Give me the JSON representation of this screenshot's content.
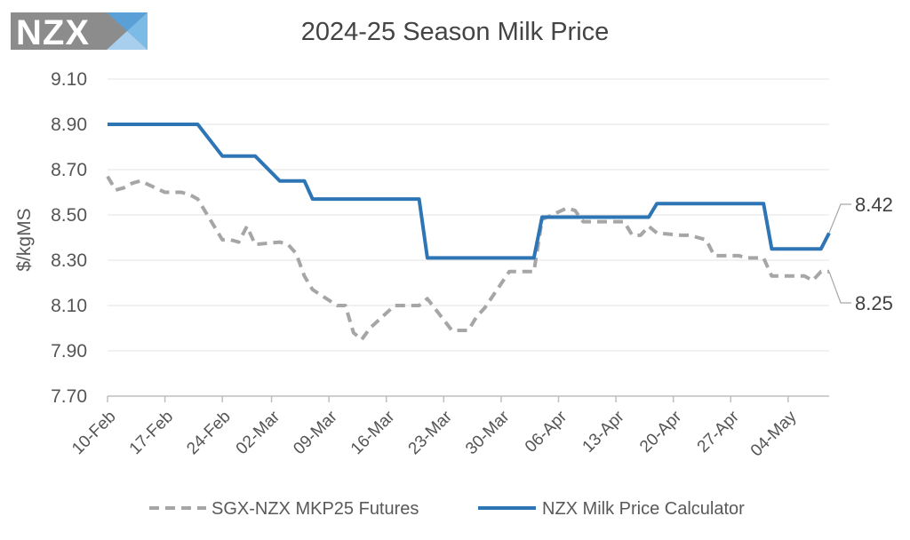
{
  "logo": {
    "text": "NZX"
  },
  "chart_data": {
    "type": "line",
    "title": "2024-25 Season Milk Price",
    "ylabel": "$/kgMS",
    "xlabel": "",
    "ylim": [
      7.7,
      9.1
    ],
    "y_ticks": [
      "7.70",
      "7.90",
      "8.10",
      "8.30",
      "8.50",
      "8.70",
      "8.90",
      "9.10"
    ],
    "x_ticks": [
      "10-Feb",
      "17-Feb",
      "24-Feb",
      "02-Mar",
      "09-Mar",
      "16-Mar",
      "23-Mar",
      "30-Mar",
      "06-Apr",
      "13-Apr",
      "20-Apr",
      "27-Apr",
      "04-May"
    ],
    "x_start": "2025-02-10",
    "x_end": "2025-05-09",
    "grid": true,
    "legend_position": "bottom",
    "series": [
      {
        "name": "SGX-NZX MKP25 Futures",
        "style": "dashed",
        "color": "#a6a6a6",
        "end_label": "8.25",
        "points": [
          [
            "2025-02-10",
            8.67
          ],
          [
            "2025-02-11",
            8.61
          ],
          [
            "2025-02-12",
            8.62
          ],
          [
            "2025-02-13",
            8.64
          ],
          [
            "2025-02-14",
            8.65
          ],
          [
            "2025-02-17",
            8.6
          ],
          [
            "2025-02-18",
            8.6
          ],
          [
            "2025-02-19",
            8.6
          ],
          [
            "2025-02-20",
            8.59
          ],
          [
            "2025-02-21",
            8.57
          ],
          [
            "2025-02-24",
            8.39
          ],
          [
            "2025-02-25",
            8.39
          ],
          [
            "2025-02-26",
            8.38
          ],
          [
            "2025-02-27",
            8.45
          ],
          [
            "2025-02-28",
            8.37
          ],
          [
            "2025-03-03",
            8.38
          ],
          [
            "2025-03-04",
            8.37
          ],
          [
            "2025-03-05",
            8.33
          ],
          [
            "2025-03-06",
            8.23
          ],
          [
            "2025-03-07",
            8.17
          ],
          [
            "2025-03-10",
            8.1
          ],
          [
            "2025-03-11",
            8.1
          ],
          [
            "2025-03-12",
            7.98
          ],
          [
            "2025-03-13",
            7.95
          ],
          [
            "2025-03-14",
            8.0
          ],
          [
            "2025-03-17",
            8.1
          ],
          [
            "2025-03-18",
            8.1
          ],
          [
            "2025-03-19",
            8.1
          ],
          [
            "2025-03-20",
            8.1
          ],
          [
            "2025-03-21",
            8.13
          ],
          [
            "2025-03-24",
            7.99
          ],
          [
            "2025-03-25",
            7.99
          ],
          [
            "2025-03-26",
            7.99
          ],
          [
            "2025-03-27",
            8.05
          ],
          [
            "2025-03-28",
            8.09
          ],
          [
            "2025-03-31",
            8.25
          ],
          [
            "2025-04-01",
            8.25
          ],
          [
            "2025-04-02",
            8.25
          ],
          [
            "2025-04-03",
            8.25
          ],
          [
            "2025-04-04",
            8.48
          ],
          [
            "2025-04-07",
            8.53
          ],
          [
            "2025-04-08",
            8.52
          ],
          [
            "2025-04-09",
            8.47
          ],
          [
            "2025-04-10",
            8.47
          ],
          [
            "2025-04-11",
            8.47
          ],
          [
            "2025-04-14",
            8.47
          ],
          [
            "2025-04-15",
            8.41
          ],
          [
            "2025-04-16",
            8.41
          ],
          [
            "2025-04-17",
            8.45
          ],
          [
            "2025-04-18",
            8.42
          ],
          [
            "2025-04-21",
            8.41
          ],
          [
            "2025-04-22",
            8.41
          ],
          [
            "2025-04-23",
            8.4
          ],
          [
            "2025-04-24",
            8.39
          ],
          [
            "2025-04-25",
            8.32
          ],
          [
            "2025-04-28",
            8.32
          ],
          [
            "2025-04-29",
            8.31
          ],
          [
            "2025-04-30",
            8.31
          ],
          [
            "2025-05-01",
            8.31
          ],
          [
            "2025-05-02",
            8.23
          ],
          [
            "2025-05-05",
            8.23
          ],
          [
            "2025-05-06",
            8.23
          ],
          [
            "2025-05-07",
            8.21
          ],
          [
            "2025-05-08",
            8.25
          ],
          [
            "2025-05-09",
            8.25
          ]
        ]
      },
      {
        "name": "NZX Milk Price Calculator",
        "style": "solid",
        "color": "#2e75b6",
        "end_label": "8.42",
        "points": [
          [
            "2025-02-10",
            8.9
          ],
          [
            "2025-02-11",
            8.9
          ],
          [
            "2025-02-12",
            8.9
          ],
          [
            "2025-02-13",
            8.9
          ],
          [
            "2025-02-14",
            8.9
          ],
          [
            "2025-02-17",
            8.9
          ],
          [
            "2025-02-18",
            8.9
          ],
          [
            "2025-02-19",
            8.9
          ],
          [
            "2025-02-20",
            8.9
          ],
          [
            "2025-02-21",
            8.9
          ],
          [
            "2025-02-24",
            8.76
          ],
          [
            "2025-02-25",
            8.76
          ],
          [
            "2025-02-26",
            8.76
          ],
          [
            "2025-02-27",
            8.76
          ],
          [
            "2025-02-28",
            8.76
          ],
          [
            "2025-03-03",
            8.65
          ],
          [
            "2025-03-04",
            8.65
          ],
          [
            "2025-03-05",
            8.65
          ],
          [
            "2025-03-06",
            8.65
          ],
          [
            "2025-03-07",
            8.57
          ],
          [
            "2025-03-10",
            8.57
          ],
          [
            "2025-03-11",
            8.57
          ],
          [
            "2025-03-12",
            8.57
          ],
          [
            "2025-03-13",
            8.57
          ],
          [
            "2025-03-14",
            8.57
          ],
          [
            "2025-03-17",
            8.57
          ],
          [
            "2025-03-18",
            8.57
          ],
          [
            "2025-03-19",
            8.57
          ],
          [
            "2025-03-20",
            8.57
          ],
          [
            "2025-03-21",
            8.31
          ],
          [
            "2025-03-24",
            8.31
          ],
          [
            "2025-03-25",
            8.31
          ],
          [
            "2025-03-26",
            8.31
          ],
          [
            "2025-03-27",
            8.31
          ],
          [
            "2025-03-28",
            8.31
          ],
          [
            "2025-03-31",
            8.31
          ],
          [
            "2025-04-01",
            8.31
          ],
          [
            "2025-04-02",
            8.31
          ],
          [
            "2025-04-03",
            8.31
          ],
          [
            "2025-04-04",
            8.49
          ],
          [
            "2025-04-07",
            8.49
          ],
          [
            "2025-04-08",
            8.49
          ],
          [
            "2025-04-09",
            8.49
          ],
          [
            "2025-04-10",
            8.49
          ],
          [
            "2025-04-11",
            8.49
          ],
          [
            "2025-04-14",
            8.49
          ],
          [
            "2025-04-15",
            8.49
          ],
          [
            "2025-04-16",
            8.49
          ],
          [
            "2025-04-17",
            8.49
          ],
          [
            "2025-04-18",
            8.55
          ],
          [
            "2025-04-21",
            8.55
          ],
          [
            "2025-04-22",
            8.55
          ],
          [
            "2025-04-23",
            8.55
          ],
          [
            "2025-04-24",
            8.55
          ],
          [
            "2025-04-25",
            8.55
          ],
          [
            "2025-04-28",
            8.55
          ],
          [
            "2025-04-29",
            8.55
          ],
          [
            "2025-04-30",
            8.55
          ],
          [
            "2025-05-01",
            8.55
          ],
          [
            "2025-05-02",
            8.35
          ],
          [
            "2025-05-05",
            8.35
          ],
          [
            "2025-05-06",
            8.35
          ],
          [
            "2025-05-07",
            8.35
          ],
          [
            "2025-05-08",
            8.35
          ],
          [
            "2025-05-09",
            8.42
          ]
        ]
      }
    ]
  }
}
